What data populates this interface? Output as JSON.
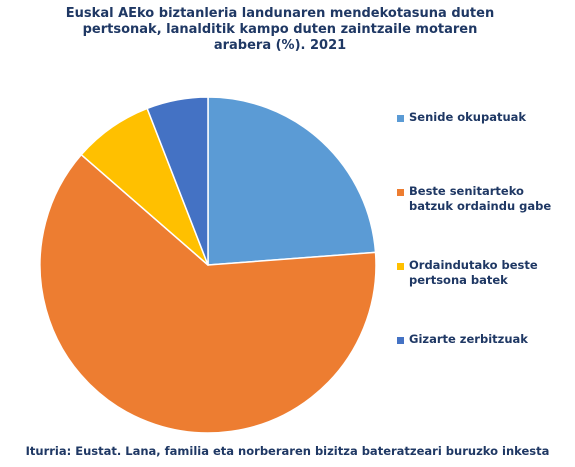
{
  "chart_data": {
    "type": "pie",
    "title_lines": [
      "Euskal AEko biztanleria landunaren mendekotasuna duten",
      "pertsonak, lanalditik kampo duten zaintzaile motaren",
      "arabera (%). 2021"
    ],
    "slices": [
      {
        "label": "Senide okupatuak",
        "value": 23.8,
        "color": "#5b9bd5"
      },
      {
        "label": "Beste senitarteko batzuk ordaindu gabe",
        "value": 62.6,
        "color": "#ed7d31"
      },
      {
        "label": "Ordaindutako beste pertsona batek",
        "value": 7.7,
        "color": "#ffc000"
      },
      {
        "label": "Gizarte zerbitzuak",
        "value": 5.9,
        "color": "#4472c4"
      }
    ],
    "start_angle": "12 o'clock",
    "direction": "clockwise",
    "legend_position": "right"
  },
  "source": "Iturria: Eustat. Lana, familia eta norberaren bizitza bateratzeari buruzko inkesta"
}
